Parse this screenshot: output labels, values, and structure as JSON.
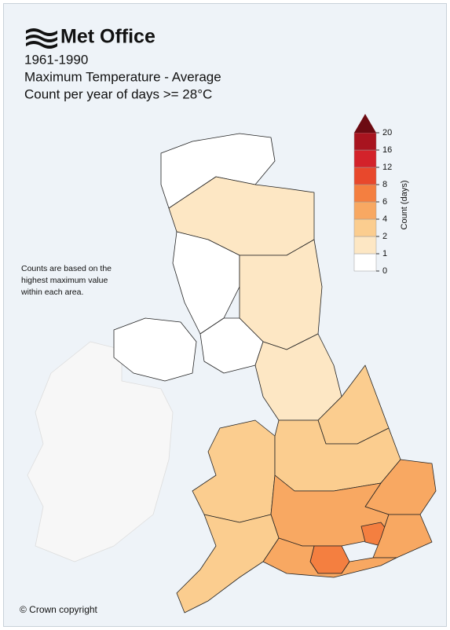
{
  "header": {
    "logo": "Met Office",
    "period": "1961-1990",
    "variable": "Maximum Temperature - Average",
    "metric": "Count per year of days >= 28°C"
  },
  "legend": {
    "title": "Count (days)",
    "ticks": [
      0,
      1,
      2,
      4,
      6,
      8,
      12,
      16,
      20
    ],
    "colors": [
      "#ffffff",
      "#fde7c4",
      "#fbcd8f",
      "#f8a862",
      "#f47f40",
      "#e8482c",
      "#d3222a",
      "#a8141f",
      "#6c0a12"
    ]
  },
  "note": [
    "Counts are based on the",
    "highest maximum value",
    "within each area."
  ],
  "footer": "© Crown copyright"
}
